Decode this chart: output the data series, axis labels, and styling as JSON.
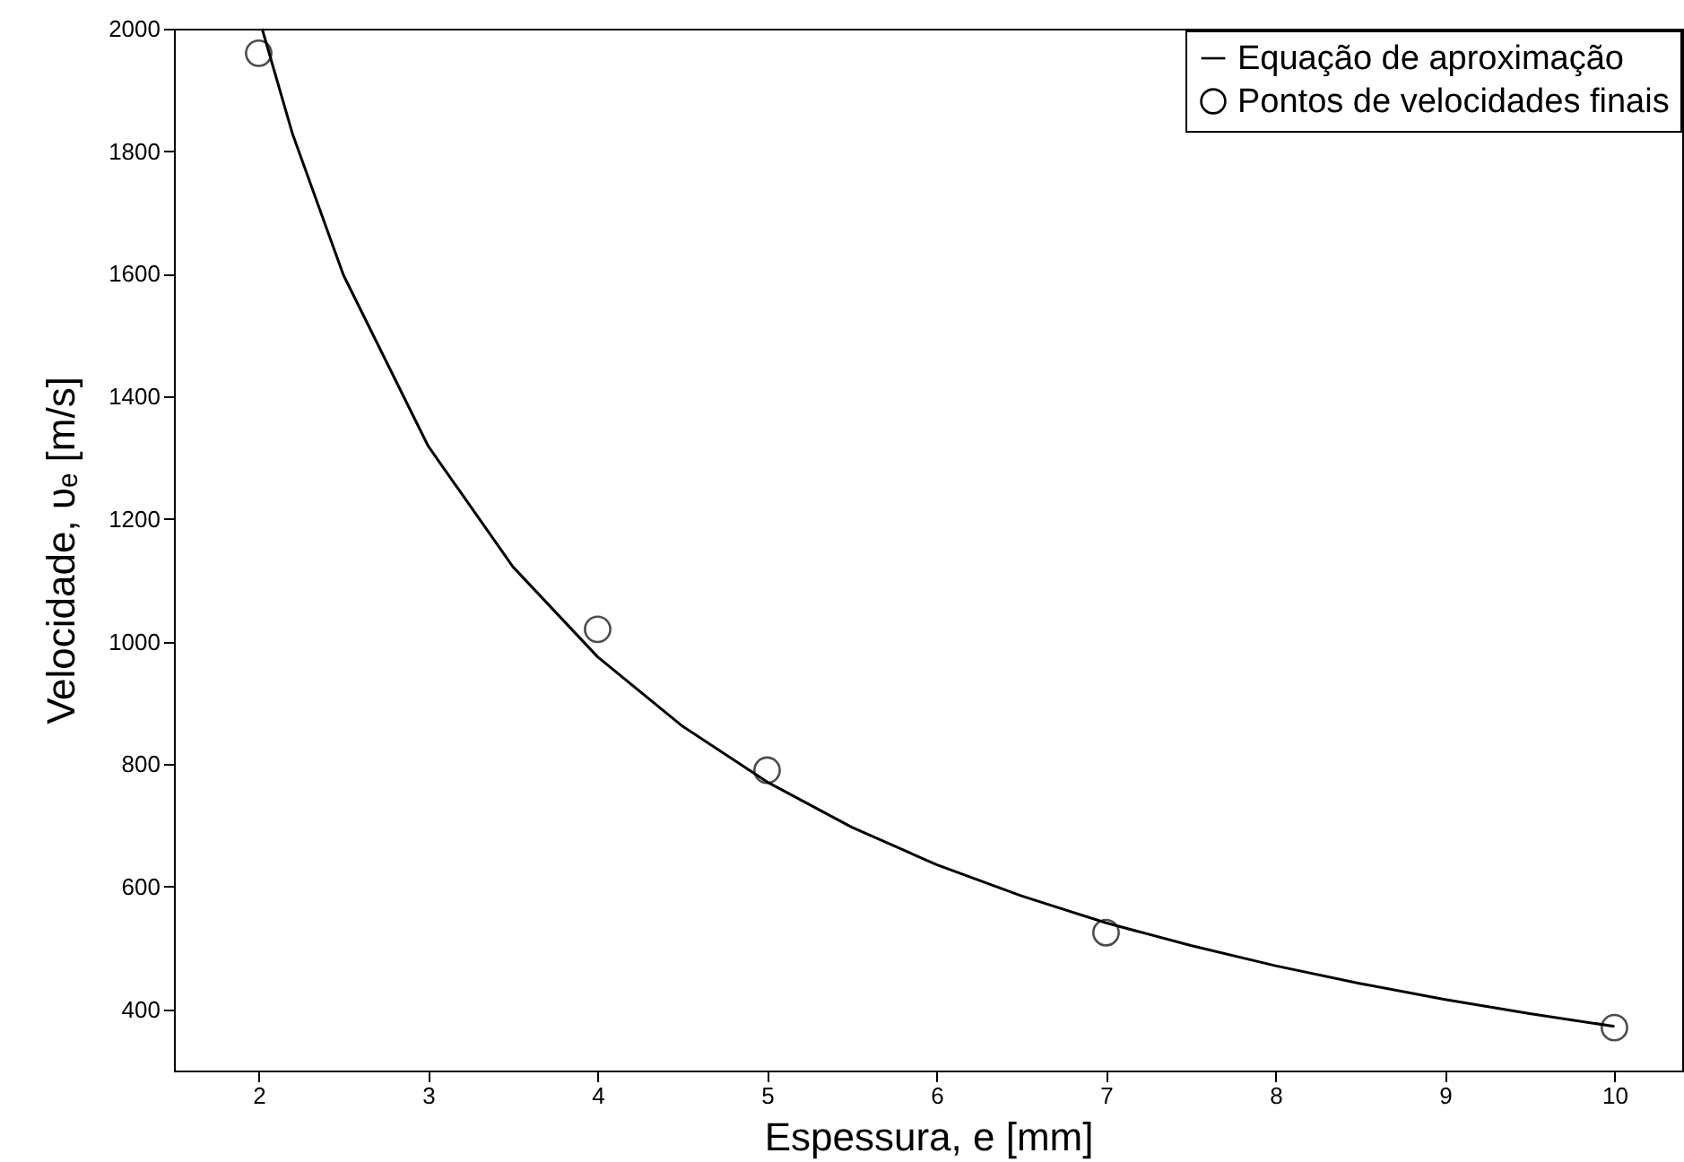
{
  "chart_data": {
    "type": "line",
    "xlabel": "Espessura, e [mm]",
    "ylabel": "Velocidade, υₑ [m/s]",
    "xlim": [
      1.5,
      10.4
    ],
    "ylim": [
      300,
      2000
    ],
    "xticks": [
      2,
      3,
      4,
      5,
      6,
      7,
      8,
      9,
      10
    ],
    "yticks": [
      400,
      600,
      800,
      1000,
      1200,
      1400,
      1600,
      1800,
      2000
    ],
    "grid": false,
    "legend": "top right",
    "series": [
      {
        "name": "Equação de aproximação",
        "type": "line",
        "color": "#000000",
        "line_style": "solid",
        "x": [
          2.02,
          2.2,
          2.5,
          3,
          3.5,
          4,
          4.5,
          5,
          5.5,
          6,
          6.5,
          7,
          7.5,
          8,
          8.5,
          9,
          9.5,
          10
        ],
        "values": [
          2000,
          1828,
          1598,
          1319,
          1122,
          975,
          862,
          771,
          697,
          636,
          585,
          541,
          504,
          471,
          442,
          416,
          393,
          372
        ]
      },
      {
        "name": "Pontos de velocidades finais",
        "type": "scatter",
        "color": "#000000",
        "marker": "circle",
        "x": [
          2,
          4,
          5,
          7,
          10
        ],
        "values": [
          1960,
          1020,
          790,
          525,
          370
        ]
      }
    ]
  }
}
